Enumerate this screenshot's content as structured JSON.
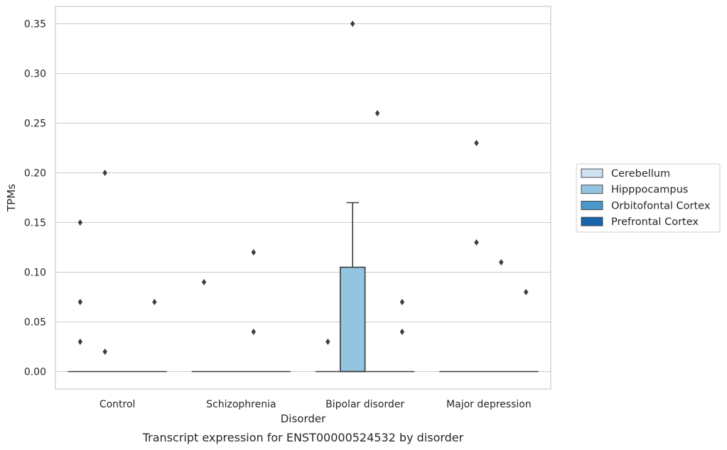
{
  "caption": "Transcript expression for ENST00000524532 by disorder",
  "chart_data": {
    "type": "box",
    "title": "",
    "xlabel": "Disorder",
    "ylabel": "TPMs",
    "categories": [
      "Control",
      "Schizophrenia",
      "Bipolar disorder",
      "Major depression"
    ],
    "ylim": [
      -0.0175,
      0.3675
    ],
    "yticks": [
      0.0,
      0.05,
      0.1,
      0.15,
      0.2,
      0.25,
      0.3,
      0.35
    ],
    "ytick_labels": [
      "0.00",
      "0.05",
      "0.10",
      "0.15",
      "0.20",
      "0.25",
      "0.30",
      "0.35"
    ],
    "grid": true,
    "legend_position": "right",
    "series": [
      {
        "name": "Cerebellum",
        "color": "#d0e1f2",
        "boxes": [
          {
            "q1": 0,
            "median": 0,
            "q3": 0,
            "whisker_low": 0,
            "whisker_high": 0,
            "outliers": [
              0.03,
              0.07,
              0.15
            ]
          },
          {
            "q1": 0,
            "median": 0,
            "q3": 0,
            "whisker_low": 0,
            "whisker_high": 0,
            "outliers": [
              0.09
            ]
          },
          {
            "q1": 0,
            "median": 0,
            "q3": 0,
            "whisker_low": 0,
            "whisker_high": 0,
            "outliers": [
              0.03
            ]
          },
          {
            "q1": 0,
            "median": 0,
            "q3": 0,
            "whisker_low": 0,
            "whisker_high": 0,
            "outliers": []
          }
        ]
      },
      {
        "name": "Hipppocampus",
        "color": "#94c4df",
        "boxes": [
          {
            "q1": 0,
            "median": 0,
            "q3": 0,
            "whisker_low": 0,
            "whisker_high": 0,
            "outliers": [
              0.2,
              0.02
            ]
          },
          {
            "q1": 0,
            "median": 0,
            "q3": 0,
            "whisker_low": 0,
            "whisker_high": 0,
            "outliers": []
          },
          {
            "q1": 0,
            "median": 0,
            "q3": 0.105,
            "whisker_low": 0,
            "whisker_high": 0.17,
            "outliers": [
              0.35
            ]
          },
          {
            "q1": 0,
            "median": 0,
            "q3": 0,
            "whisker_low": 0,
            "whisker_high": 0,
            "outliers": [
              0.23,
              0.13
            ]
          }
        ]
      },
      {
        "name": "Orbitofontal Cortex",
        "color": "#4a98c9",
        "boxes": [
          {
            "q1": 0,
            "median": 0,
            "q3": 0,
            "whisker_low": 0,
            "whisker_high": 0,
            "outliers": []
          },
          {
            "q1": 0,
            "median": 0,
            "q3": 0,
            "whisker_low": 0,
            "whisker_high": 0,
            "outliers": [
              0.12,
              0.04
            ]
          },
          {
            "q1": 0,
            "median": 0,
            "q3": 0,
            "whisker_low": 0,
            "whisker_high": 0,
            "outliers": [
              0.26
            ]
          },
          {
            "q1": 0,
            "median": 0,
            "q3": 0,
            "whisker_low": 0,
            "whisker_high": 0,
            "outliers": [
              0.11
            ]
          }
        ]
      },
      {
        "name": "Prefrontal Cortex",
        "color": "#1764ab",
        "boxes": [
          {
            "q1": 0,
            "median": 0,
            "q3": 0,
            "whisker_low": 0,
            "whisker_high": 0,
            "outliers": [
              0.07
            ]
          },
          {
            "q1": 0,
            "median": 0,
            "q3": 0,
            "whisker_low": 0,
            "whisker_high": 0,
            "outliers": []
          },
          {
            "q1": 0,
            "median": 0,
            "q3": 0,
            "whisker_low": 0,
            "whisker_high": 0,
            "outliers": [
              0.07,
              0.04
            ]
          },
          {
            "q1": 0,
            "median": 0,
            "q3": 0,
            "whisker_low": 0,
            "whisker_high": 0,
            "outliers": [
              0.08
            ]
          }
        ]
      }
    ]
  }
}
